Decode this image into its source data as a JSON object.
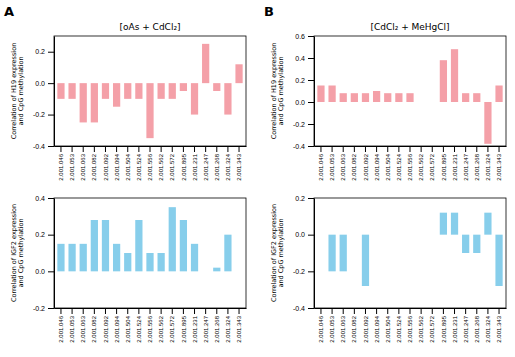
{
  "chart_data": [
    {
      "type": "bar",
      "title": "[oAs + CdCl₂]",
      "annotations": [
        "A"
      ],
      "ylabel": "Correlation of H19 expression\nand CpG methylation",
      "categories": [
        "2.001.046",
        "2.001.053",
        "2.001.063",
        "2.001.082",
        "2.001.092",
        "2.001.094",
        "2.001.504",
        "2.001.524",
        "2.001.556",
        "2.001.562",
        "2.001.572",
        "2.001.895",
        "2.001.231",
        "2.001.247",
        "2.001.268",
        "2.001.324",
        "2.001.343"
      ],
      "values": [
        -0.1,
        -0.1,
        -0.25,
        -0.25,
        -0.1,
        -0.15,
        -0.1,
        -0.1,
        -0.35,
        -0.1,
        -0.1,
        -0.05,
        -0.2,
        0.25,
        -0.05,
        -0.2,
        0.12
      ],
      "color": "#f4a0a8",
      "ylim": [
        -0.4,
        0.3
      ],
      "yticks": [
        -0.4,
        -0.2,
        {
          "value": 0,
          "label": "0.0"
        },
        0.2
      ],
      "grid": false
    },
    {
      "type": "bar",
      "ylabel": "Correlation of IGF2 expression\nand CpG methylation",
      "categories": [
        "2.001.046",
        "2.001.053",
        "2.001.063",
        "2.001.082",
        "2.001.092",
        "2.001.094",
        "2.001.504",
        "2.001.524",
        "2.001.556",
        "2.001.562",
        "2.001.572",
        "2.001.895",
        "2.001.231",
        "2.001.247",
        "2.001.268",
        "2.001.324",
        "2.001.343"
      ],
      "values": [
        0.15,
        0.15,
        0.15,
        0.28,
        0.28,
        0.15,
        0.1,
        0.28,
        0.1,
        0.1,
        0.35,
        0.28,
        0.15,
        0.0,
        0.02,
        0.2,
        0.0
      ],
      "color": "#87ceeb",
      "ylim": [
        -0.2,
        0.4
      ],
      "yticks": [
        -0.2,
        {
          "value": 0,
          "label": "0.0"
        },
        0.2,
        0.4
      ],
      "grid": false
    },
    {
      "type": "bar",
      "title": "[CdCl₂ + MeHgCl]",
      "annotations": [
        "B"
      ],
      "ylabel": "Correlation of H19 expression\nand CpG methylation",
      "categories": [
        "2.001.046",
        "2.001.053",
        "2.001.063",
        "2.001.082",
        "2.001.092",
        "2.001.094",
        "2.001.504",
        "2.001.524",
        "2.001.556",
        "2.001.562",
        "2.001.572",
        "2.001.895",
        "2.001.231",
        "2.001.247",
        "2.001.268",
        "2.001.324",
        "2.001.343"
      ],
      "values": [
        0.15,
        0.15,
        0.08,
        0.08,
        0.08,
        0.1,
        0.08,
        0.08,
        0.08,
        0.0,
        0.0,
        0.38,
        0.48,
        0.08,
        0.08,
        -0.38,
        0.15
      ],
      "color": "#f4a0a8",
      "ylim": [
        -0.4,
        0.6
      ],
      "yticks": [
        -0.4,
        -0.2,
        {
          "value": 0,
          "label": "0.0"
        },
        0.2,
        0.4,
        0.6
      ],
      "grid": false
    },
    {
      "type": "bar",
      "ylabel": "Correlation of IGF2 expression\nand CpG methylation",
      "categories": [
        "2.001.046",
        "2.001.053",
        "2.001.063",
        "2.001.082",
        "2.001.092",
        "2.001.094",
        "2.001.504",
        "2.001.524",
        "2.001.556",
        "2.001.562",
        "2.001.572",
        "2.001.895",
        "2.001.231",
        "2.001.247",
        "2.001.268",
        "2.001.324",
        "2.001.343"
      ],
      "values": [
        0.0,
        -0.2,
        -0.2,
        0.0,
        -0.28,
        0.0,
        0.0,
        0.0,
        0.0,
        0.0,
        0.0,
        0.12,
        0.12,
        -0.1,
        -0.1,
        0.12,
        -0.28
      ],
      "color": "#87ceeb",
      "ylim": [
        -0.4,
        0.2
      ],
      "yticks": [
        -0.4,
        -0.2,
        {
          "value": 0,
          "label": "0.0"
        },
        0.2
      ],
      "grid": false
    }
  ]
}
